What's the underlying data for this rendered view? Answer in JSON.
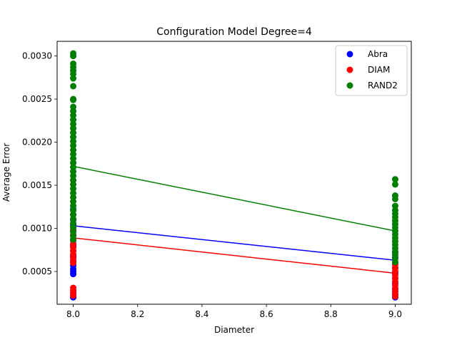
{
  "chart_data": {
    "type": "scatter",
    "title": "Configuration Model Degree=4",
    "xlabel": "Diameter",
    "ylabel": "Average Error",
    "xlim": [
      7.95,
      9.05
    ],
    "ylim": [
      0.00012,
      0.00317
    ],
    "xticks": [
      8.0,
      8.2,
      8.4,
      8.6,
      8.8,
      9.0
    ],
    "xtick_labels": [
      "8.0",
      "8.2",
      "8.4",
      "8.6",
      "8.8",
      "9.0"
    ],
    "yticks": [
      0.0005,
      0.001,
      0.0015,
      0.002,
      0.0025,
      0.003
    ],
    "ytick_labels": [
      "0.0005",
      "0.0010",
      "0.0015",
      "0.0020",
      "0.0025",
      "0.0030"
    ],
    "grid": false,
    "legend_position": "top-right",
    "series": [
      {
        "name": "Abra",
        "color": "#0000ff",
        "points": [
          [
            8.0,
            0.0002
          ],
          [
            8.0,
            0.00022
          ],
          [
            8.0,
            0.00025
          ],
          [
            8.0,
            0.00047
          ],
          [
            8.0,
            0.0005
          ],
          [
            8.0,
            0.00053
          ],
          [
            8.0,
            0.00057
          ],
          [
            8.0,
            0.00062
          ],
          [
            8.0,
            0.00068
          ],
          [
            8.0,
            0.00074
          ],
          [
            8.0,
            0.0008
          ],
          [
            8.0,
            0.00086
          ],
          [
            8.0,
            0.00092
          ],
          [
            8.0,
            0.00098
          ],
          [
            8.0,
            0.00104
          ],
          [
            8.0,
            0.0011
          ],
          [
            8.0,
            0.00116
          ],
          [
            8.0,
            0.00122
          ],
          [
            9.0,
            0.0002
          ],
          [
            9.0,
            0.00023
          ],
          [
            9.0,
            0.00027
          ],
          [
            9.0,
            0.0003
          ],
          [
            9.0,
            0.00036
          ],
          [
            9.0,
            0.00042
          ],
          [
            9.0,
            0.00048
          ],
          [
            9.0,
            0.00054
          ],
          [
            9.0,
            0.0006
          ],
          [
            9.0,
            0.00066
          ],
          [
            9.0,
            0.00072
          ]
        ],
        "fit": [
          [
            8.0,
            0.00103
          ],
          [
            9.0,
            0.00063
          ]
        ]
      },
      {
        "name": "DIAM",
        "color": "#ff0000",
        "points": [
          [
            8.0,
            0.00022
          ],
          [
            8.0,
            0.00025
          ],
          [
            8.0,
            0.00028
          ],
          [
            8.0,
            0.00031
          ],
          [
            8.0,
            0.0006
          ],
          [
            8.0,
            0.00063
          ],
          [
            8.0,
            0.00066
          ],
          [
            8.0,
            0.0007
          ],
          [
            8.0,
            0.00074
          ],
          [
            8.0,
            0.00078
          ],
          [
            8.0,
            0.00082
          ],
          [
            8.0,
            0.00087
          ],
          [
            8.0,
            0.00092
          ],
          [
            8.0,
            0.00097
          ],
          [
            9.0,
            0.00021
          ],
          [
            9.0,
            0.00024
          ],
          [
            9.0,
            0.00027
          ],
          [
            9.0,
            0.0003
          ],
          [
            9.0,
            0.00034
          ],
          [
            9.0,
            0.00038
          ],
          [
            9.0,
            0.00042
          ],
          [
            9.0,
            0.00046
          ],
          [
            9.0,
            0.0005
          ],
          [
            9.0,
            0.00054
          ],
          [
            9.0,
            0.00058
          ]
        ],
        "fit": [
          [
            8.0,
            0.00089
          ],
          [
            9.0,
            0.00048
          ]
        ]
      },
      {
        "name": "RAND2",
        "color": "#008000",
        "points": [
          [
            8.0,
            0.00087
          ],
          [
            8.0,
            0.00091
          ],
          [
            8.0,
            0.00096
          ],
          [
            8.0,
            0.00101
          ],
          [
            8.0,
            0.00106
          ],
          [
            8.0,
            0.00111
          ],
          [
            8.0,
            0.00116
          ],
          [
            8.0,
            0.00121
          ],
          [
            8.0,
            0.00126
          ],
          [
            8.0,
            0.00131
          ],
          [
            8.0,
            0.00136
          ],
          [
            8.0,
            0.00141
          ],
          [
            8.0,
            0.00146
          ],
          [
            8.0,
            0.00151
          ],
          [
            8.0,
            0.00156
          ],
          [
            8.0,
            0.00161
          ],
          [
            8.0,
            0.00166
          ],
          [
            8.0,
            0.00171
          ],
          [
            8.0,
            0.00176
          ],
          [
            8.0,
            0.00181
          ],
          [
            8.0,
            0.00186
          ],
          [
            8.0,
            0.00191
          ],
          [
            8.0,
            0.00196
          ],
          [
            8.0,
            0.00201
          ],
          [
            8.0,
            0.00206
          ],
          [
            8.0,
            0.00211
          ],
          [
            8.0,
            0.00216
          ],
          [
            8.0,
            0.00221
          ],
          [
            8.0,
            0.00226
          ],
          [
            8.0,
            0.00231
          ],
          [
            8.0,
            0.00236
          ],
          [
            8.0,
            0.00241
          ],
          [
            8.0,
            0.00249
          ],
          [
            8.0,
            0.0025
          ],
          [
            8.0,
            0.00265
          ],
          [
            8.0,
            0.00274
          ],
          [
            8.0,
            0.00279
          ],
          [
            8.0,
            0.00283
          ],
          [
            8.0,
            0.00287
          ],
          [
            8.0,
            0.00291
          ],
          [
            8.0,
            0.003
          ],
          [
            8.0,
            0.00303
          ],
          [
            9.0,
            0.00061
          ],
          [
            9.0,
            0.00065
          ],
          [
            9.0,
            0.00069
          ],
          [
            9.0,
            0.00073
          ],
          [
            9.0,
            0.00077
          ],
          [
            9.0,
            0.00081
          ],
          [
            9.0,
            0.00085
          ],
          [
            9.0,
            0.00089
          ],
          [
            9.0,
            0.00093
          ],
          [
            9.0,
            0.00097
          ],
          [
            9.0,
            0.00101
          ],
          [
            9.0,
            0.00105
          ],
          [
            9.0,
            0.00109
          ],
          [
            9.0,
            0.00113
          ],
          [
            9.0,
            0.00117
          ],
          [
            9.0,
            0.00121
          ],
          [
            9.0,
            0.00126
          ],
          [
            9.0,
            0.00134
          ],
          [
            9.0,
            0.00138
          ],
          [
            9.0,
            0.00151
          ],
          [
            9.0,
            0.00157
          ]
        ],
        "fit": [
          [
            8.0,
            0.00172
          ],
          [
            9.0,
            0.00097
          ]
        ]
      }
    ]
  }
}
